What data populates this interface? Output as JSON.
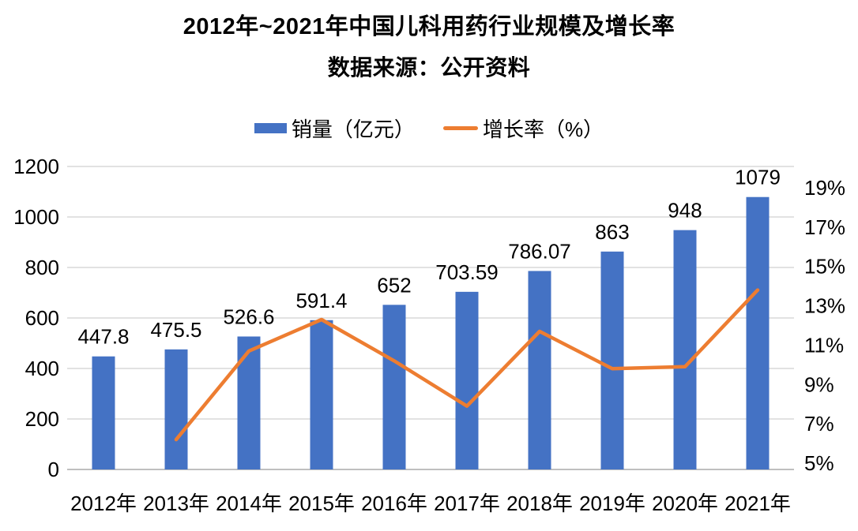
{
  "chart": {
    "title": "2012年~2021年中国儿科用药行业规模及增长率",
    "subtitle": "数据来源：公开资料",
    "legend": [
      {
        "label": "销量（亿元）",
        "type": "bar",
        "color": "#4472C4"
      },
      {
        "label": "增长率（%）",
        "type": "line",
        "color": "#ED7D31"
      }
    ]
  },
  "chart_data": {
    "type": "bar",
    "title": "2012年~2021年中国儿科用药行业规模及增长率",
    "subtitle": "数据来源：公开资料",
    "categories": [
      "2012年",
      "2013年",
      "2014年",
      "2015年",
      "2016年",
      "2017年",
      "2018年",
      "2019年",
      "2020年",
      "2021年"
    ],
    "series": [
      {
        "name": "销量（亿元）",
        "type": "bar",
        "axis": "left",
        "color": "#4472C4",
        "values": [
          447.8,
          475.5,
          526.6,
          591.4,
          652,
          703.59,
          786.07,
          863,
          948,
          1079
        ],
        "labels": [
          "447.8",
          "475.5",
          "526.6",
          "591.4",
          "652",
          "703.59",
          "786.07",
          "863",
          "948",
          "1079"
        ]
      },
      {
        "name": "增长率（%）",
        "type": "line",
        "axis": "right",
        "color": "#ED7D31",
        "values": [
          null,
          6.2,
          10.7,
          12.3,
          10.2,
          7.9,
          11.7,
          9.8,
          9.9,
          13.8
        ]
      }
    ],
    "y_left": {
      "ticks": [
        0,
        200,
        400,
        600,
        800,
        1000,
        1200
      ],
      "tick_labels": [
        "0",
        "200",
        "400",
        "600",
        "800",
        "1000",
        "1200"
      ],
      "lim": [
        0,
        1200
      ]
    },
    "y_right": {
      "ticks": [
        5,
        7,
        9,
        11,
        13,
        15,
        17,
        19
      ],
      "tick_labels": [
        "5%",
        "7%",
        "9%",
        "11%",
        "13%",
        "15%",
        "17%",
        "19%"
      ],
      "lim": [
        4.68,
        20.08
      ]
    },
    "grid": true,
    "legend_position": "top",
    "colors": {
      "grid": "#D9D9D9",
      "axis_line": "#BFBFBF",
      "text": "#000000",
      "background": "#FFFFFF"
    }
  }
}
